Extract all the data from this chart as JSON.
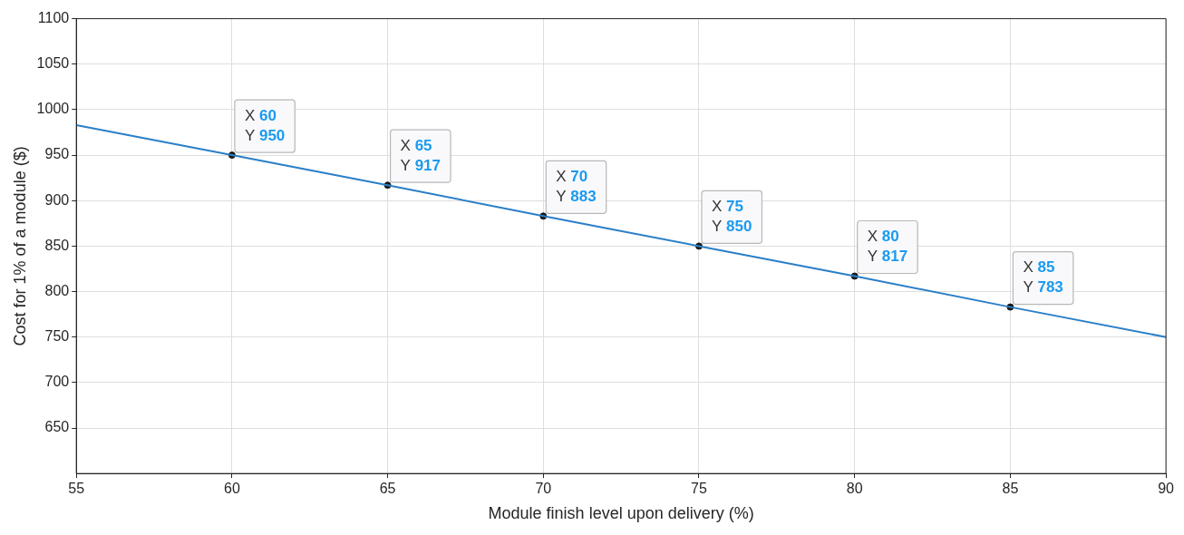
{
  "chart_data": {
    "type": "line",
    "xlabel": "Module finish level upon delivery (%)",
    "ylabel": "Cost for 1% of a module ($)",
    "series": [
      {
        "color": "#2b7fc6",
        "marker": "none",
        "x": [
          55,
          60,
          65,
          70,
          75,
          80,
          85,
          90
        ],
        "values": [
          983,
          950,
          917,
          883,
          850,
          817,
          783,
          750
        ]
      },
      {
        "type": "scatter",
        "color": "#1a1a1a",
        "marker": "circle",
        "x": [
          60,
          65,
          70,
          75,
          80,
          85
        ],
        "values": [
          950,
          917,
          883,
          850,
          817,
          783
        ]
      }
    ],
    "xlim": [
      55,
      90
    ],
    "xticks": [
      55,
      60,
      65,
      70,
      75,
      80,
      85,
      90
    ],
    "ylim": [
      600,
      1100
    ],
    "yticks": [
      650,
      700,
      750,
      800,
      850,
      900,
      950,
      1000,
      1050,
      1100
    ],
    "grid": true,
    "legend": false,
    "annotations": [
      {
        "text": "X 60\nY 950",
        "x": 60,
        "y": 950
      },
      {
        "text": "X 65\nY 917",
        "x": 65,
        "y": 917
      },
      {
        "text": "X 70\nY 883",
        "x": 70,
        "y": 883
      },
      {
        "text": "X 75\nY 850",
        "x": 75,
        "y": 850
      },
      {
        "text": "X 80\nY 817",
        "x": 80,
        "y": 817
      },
      {
        "text": "X 85\nY 783",
        "x": 85,
        "y": 783
      }
    ]
  }
}
